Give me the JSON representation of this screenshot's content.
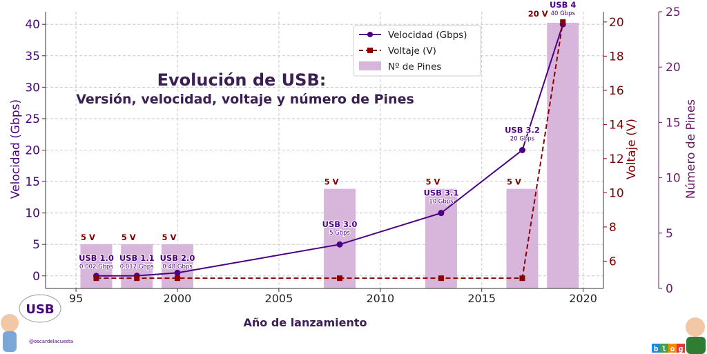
{
  "colors": {
    "speed": "#4b0082",
    "voltage": "#8b0000",
    "pins": "#d8b6dc",
    "title": "#3b1e52"
  },
  "title_line1": "Evolución de USB:",
  "title_line2": "Versión, velocidad, voltaje y número de Pines",
  "badge": {
    "text": "USB",
    "handle": "@oscardelacuesta",
    "blog_letters": [
      "b",
      "l",
      "o",
      "g"
    ]
  },
  "chart_data": {
    "type": "bar",
    "xlabel": "Año de lanzamiento",
    "ylabel_left": "Velocidad (Gbps)",
    "ylabel_right1": "Voltaje (V)",
    "ylabel_right2": "Número de Pines",
    "xlim": [
      93.5,
      2021
    ],
    "x_ticks": [
      {
        "v": 95,
        "label": "95"
      },
      {
        "v": 2000,
        "label": "2000"
      },
      {
        "v": 2005,
        "label": "2005"
      },
      {
        "v": 2010,
        "label": "2010"
      },
      {
        "v": 2015,
        "label": "2015"
      },
      {
        "v": 2020,
        "label": "2020"
      }
    ],
    "ylim_left": [
      -2,
      42
    ],
    "ylim_right1": [
      4.4,
      20.6
    ],
    "ylim_right2": [
      0,
      25
    ],
    "left_ticks": [
      0,
      5,
      10,
      15,
      20,
      25,
      30,
      35,
      40
    ],
    "right1_ticks": [
      6,
      8,
      10,
      12,
      14,
      16,
      18,
      20
    ],
    "right2_ticks": [
      0,
      5,
      10,
      15,
      20,
      25
    ],
    "grid": true,
    "legend_position": "top-center",
    "legend": [
      {
        "label": "Velocidad (Gbps)",
        "kind": "line-marker"
      },
      {
        "label": "Voltaje (V)",
        "kind": "dashed-square"
      },
      {
        "label": "Nº de Pines",
        "kind": "bar"
      }
    ],
    "points": [
      {
        "version": "USB 1.0",
        "year": 1996,
        "speed": 0.0015,
        "speed_label": "0.002 Gbps",
        "voltage": 5,
        "voltage_label": "5 V",
        "pins": 4
      },
      {
        "version": "USB 1.1",
        "year": 1998,
        "speed": 0.012,
        "speed_label": "0.012 Gbps",
        "voltage": 5,
        "voltage_label": "5 V",
        "pins": 4
      },
      {
        "version": "USB 2.0",
        "year": 2000,
        "speed": 0.48,
        "speed_label": "0.48 Gbps",
        "voltage": 5,
        "voltage_label": "5 V",
        "pins": 4
      },
      {
        "version": "USB 3.0",
        "year": 2008,
        "speed": 5,
        "speed_label": "5 Gbps",
        "voltage": 5,
        "voltage_label": "5 V",
        "pins": 9
      },
      {
        "version": "USB 3.1",
        "year": 2013,
        "speed": 10,
        "speed_label": "10 Gbps",
        "voltage": 5,
        "voltage_label": "5 V",
        "pins": 9
      },
      {
        "version": "USB 3.2",
        "year": 2017,
        "speed": 20,
        "speed_label": "20 Gbps",
        "voltage": 5,
        "voltage_label": "5 V",
        "pins": 9
      },
      {
        "version": "USB 4",
        "year": 2019,
        "speed": 40,
        "speed_label": "40 Gbps",
        "voltage": 20,
        "voltage_label": "20 V",
        "pins": 24
      }
    ]
  }
}
